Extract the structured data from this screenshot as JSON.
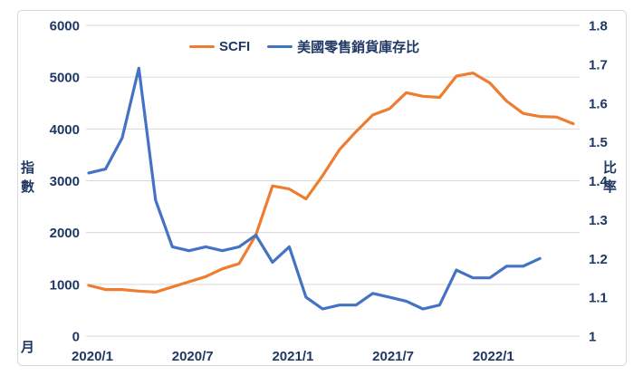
{
  "chart": {
    "legend": [
      {
        "label": "SCFI",
        "color": "#ED7D31"
      },
      {
        "label": "美國零售銷貨庫存比",
        "color": "#4472C4"
      }
    ],
    "left_axis": {
      "title": "指數",
      "ticks": [
        "6000",
        "5000",
        "4000",
        "3000",
        "2000",
        "1000",
        "0"
      ]
    },
    "right_axis": {
      "title": "比率",
      "ticks": [
        "1.8",
        "1.7",
        "1.6",
        "1.5",
        "1.4",
        "1.3",
        "1.2",
        "1.1",
        "1"
      ]
    },
    "x_axis": {
      "title": "月",
      "tick_labels": [
        "2020/1",
        "2020/7",
        "2021/1",
        "2021/7",
        "2022/1"
      ],
      "tick_month_indices": [
        0,
        6,
        12,
        18,
        24
      ]
    },
    "colors": {
      "text": "#1F3864",
      "gridline": "#D9D9D9",
      "frame": "#D9D9D9",
      "background": "#FFFFFF"
    }
  },
  "chart_data": {
    "type": "line",
    "x": [
      "2020/1",
      "2020/2",
      "2020/3",
      "2020/4",
      "2020/5",
      "2020/6",
      "2020/7",
      "2020/8",
      "2020/9",
      "2020/10",
      "2020/11",
      "2020/12",
      "2021/1",
      "2021/2",
      "2021/3",
      "2021/4",
      "2021/5",
      "2021/6",
      "2021/7",
      "2021/8",
      "2021/9",
      "2021/10",
      "2021/11",
      "2021/12",
      "2022/1",
      "2022/2",
      "2022/3",
      "2022/4",
      "2022/5",
      "2022/6"
    ],
    "series": [
      {
        "name": "SCFI",
        "axis": "left",
        "color": "#ED7D31",
        "values": [
          980,
          900,
          900,
          870,
          850,
          950,
          1050,
          1150,
          1300,
          1400,
          1950,
          2900,
          2840,
          2650,
          3100,
          3600,
          3950,
          4270,
          4390,
          4700,
          4630,
          4610,
          5020,
          5080,
          4890,
          4540,
          4300,
          4240,
          4230,
          4100
        ]
      },
      {
        "name": "美國零售銷貨庫存比",
        "axis": "right",
        "color": "#4472C4",
        "values": [
          1.42,
          1.43,
          1.51,
          1.69,
          1.35,
          1.23,
          1.22,
          1.23,
          1.22,
          1.23,
          1.26,
          1.19,
          1.23,
          1.1,
          1.07,
          1.08,
          1.08,
          1.11,
          1.1,
          1.09,
          1.07,
          1.08,
          1.17,
          1.15,
          1.15,
          1.18,
          1.18,
          1.2,
          null,
          null
        ]
      }
    ],
    "title": "",
    "xlabel": "月",
    "ylabel_left": "指數",
    "ylabel_right": "比率",
    "ylim_left": [
      0,
      6000
    ],
    "ylim_right": [
      1.0,
      1.8
    ],
    "grid": true,
    "legend_position": "top-center"
  }
}
